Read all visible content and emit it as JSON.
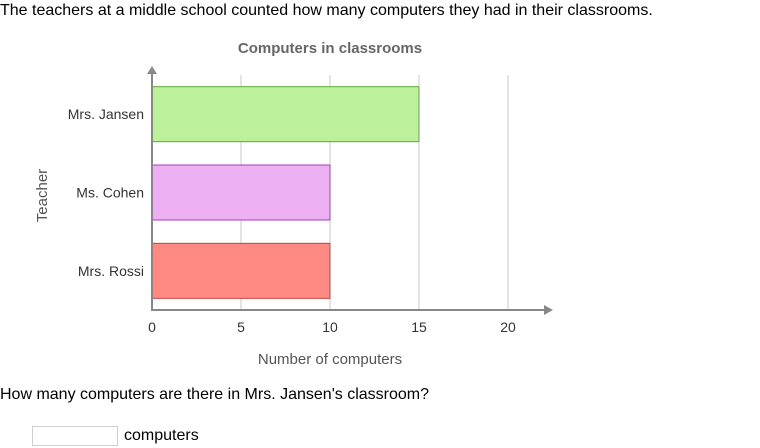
{
  "intro_text": "The teachers at a middle school counted how many computers they had in their classrooms.",
  "question_text": "How many computers are there in Mrs. Jansen's classroom?",
  "answer": {
    "value": "",
    "placeholder": "",
    "unit_label": "computers"
  },
  "chart_data": {
    "type": "bar",
    "orientation": "horizontal",
    "title": "Computers in classrooms",
    "xlabel": "Number of computers",
    "ylabel": "Teacher",
    "categories": [
      "Mrs. Jansen",
      "Ms. Cohen",
      "Mrs. Rossi"
    ],
    "values": [
      15,
      10,
      10
    ],
    "xlim": [
      0,
      20
    ],
    "xticks": [
      0,
      5,
      10,
      15,
      20
    ],
    "grid": true,
    "colors": [
      {
        "fill": "#bcf09a",
        "stroke": "#5fa83c"
      },
      {
        "fill": "#ecb0f3",
        "stroke": "#a53cc0"
      },
      {
        "fill": "#ff8a84",
        "stroke": "#c8403b"
      }
    ]
  }
}
